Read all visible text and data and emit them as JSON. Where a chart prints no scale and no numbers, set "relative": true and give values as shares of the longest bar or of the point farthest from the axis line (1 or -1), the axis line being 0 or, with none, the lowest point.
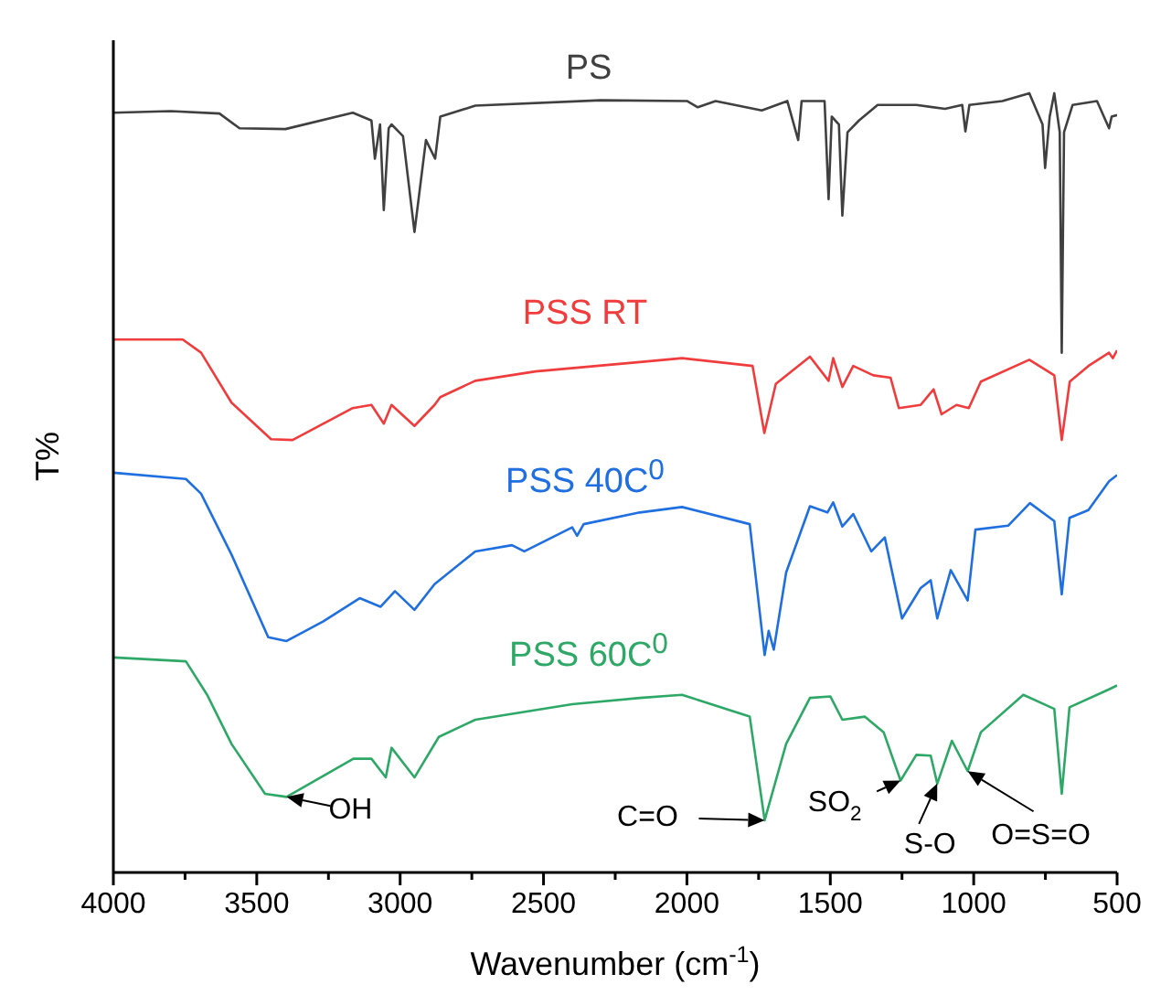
{
  "chart_data": {
    "type": "line",
    "relative": true,
    "xlabel": "Wavenumber (cm$^{-1}$)",
    "ylabel": "T%",
    "xlim": [
      4000,
      500
    ],
    "xticks": [
      4000,
      {
        "value": 3750,
        "label": null
      },
      3500,
      {
        "value": 3250,
        "label": null
      },
      3000,
      {
        "value": 2750,
        "label": null
      },
      2500,
      {
        "value": 2250,
        "label": null
      },
      2000,
      {
        "value": 1750,
        "label": null
      },
      1500,
      {
        "value": 1250,
        "label": null
      },
      1000,
      {
        "value": 750,
        "label": null
      },
      500
    ],
    "series": [
      {
        "name": "PS",
        "color": "#404040",
        "x": [
          4000,
          3800,
          3630,
          3560,
          3400,
          3165,
          3100,
          3088,
          3070,
          3057,
          3040,
          3030,
          2990,
          2950,
          2910,
          2878,
          2860,
          2738,
          2300,
          2000,
          1962,
          1900,
          1739,
          1650,
          1612,
          1600,
          1520,
          1506,
          1495,
          1470,
          1458,
          1440,
          1400,
          1335,
          1200,
          1100,
          1040,
          1029,
          1015,
          900,
          806,
          760,
          751,
          735,
          719,
          700,
          693,
          685,
          655,
          570,
          528,
          519,
          500
        ],
        "values": [
          0.975,
          0.977,
          0.974,
          0.955,
          0.954,
          0.975,
          0.965,
          0.916,
          0.96,
          0.85,
          0.955,
          0.96,
          0.945,
          0.822,
          0.94,
          0.916,
          0.97,
          0.984,
          0.991,
          0.99,
          0.982,
          0.99,
          0.978,
          0.99,
          0.94,
          0.99,
          0.99,
          0.864,
          0.97,
          0.96,
          0.843,
          0.95,
          0.965,
          0.985,
          0.985,
          0.98,
          0.985,
          0.951,
          0.985,
          0.99,
          1,
          0.96,
          0.904,
          0.97,
          1,
          0.95,
          0.667,
          0.95,
          0.985,
          0.99,
          0.955,
          0.97,
          0.972
        ]
      },
      {
        "name": "PSS RT",
        "color": "#f03c3c",
        "x": [
          4000,
          3758,
          3694,
          3588,
          3450,
          3375,
          3165,
          3100,
          3057,
          3030,
          2950,
          2880,
          2860,
          2738,
          2528,
          2164,
          2017,
          1771,
          1730,
          1690,
          1571,
          1506,
          1490,
          1458,
          1420,
          1350,
          1290,
          1261,
          1185,
          1140,
          1112,
          1060,
          1017,
          975,
          806,
          719,
          693,
          665,
          600,
          528,
          515,
          500
        ],
        "values": [
          0.684,
          0.684,
          0.667,
          0.603,
          0.556,
          0.555,
          0.596,
          0.6,
          0.576,
          0.6,
          0.573,
          0.6,
          0.61,
          0.631,
          0.643,
          0.655,
          0.66,
          0.65,
          0.564,
          0.627,
          0.662,
          0.631,
          0.66,
          0.623,
          0.65,
          0.638,
          0.635,
          0.596,
          0.6,
          0.62,
          0.588,
          0.6,
          0.596,
          0.63,
          0.658,
          0.638,
          0.555,
          0.63,
          0.65,
          0.667,
          0.66,
          0.67
        ]
      },
      {
        "name": "PSS 40C$^{0}$",
        "color": "#1f6fe0",
        "x": [
          4000,
          3747,
          3694,
          3588,
          3460,
          3396,
          3269,
          3141,
          3068,
          3018,
          2950,
          2880,
          2738,
          2610,
          2567,
          2400,
          2383,
          2360,
          2164,
          2017,
          1781,
          1729,
          1715,
          1697,
          1654,
          1571,
          1510,
          1490,
          1458,
          1420,
          1357,
          1310,
          1250,
          1185,
          1150,
          1127,
          1080,
          1021,
          994,
          880,
          804,
          719,
          693,
          666,
          600,
          528,
          500
        ],
        "values": [
          0.513,
          0.505,
          0.486,
          0.408,
          0.302,
          0.297,
          0.322,
          0.352,
          0.341,
          0.361,
          0.337,
          0.37,
          0.412,
          0.42,
          0.412,
          0.443,
          0.432,
          0.447,
          0.462,
          0.469,
          0.447,
          0.279,
          0.31,
          0.286,
          0.385,
          0.47,
          0.462,
          0.475,
          0.444,
          0.46,
          0.412,
          0.43,
          0.326,
          0.365,
          0.375,
          0.326,
          0.388,
          0.349,
          0.44,
          0.445,
          0.474,
          0.451,
          0.357,
          0.455,
          0.465,
          0.502,
          0.51
        ]
      },
      {
        "name": "PSS 60C$^{0}$",
        "color": "#2ea866",
        "x": [
          4000,
          3747,
          3673,
          3588,
          3471,
          3396,
          3163,
          3100,
          3050,
          3030,
          2950,
          2865,
          2738,
          2400,
          2164,
          2017,
          1781,
          1729,
          1654,
          1571,
          1500,
          1458,
          1380,
          1314,
          1255,
          1200,
          1150,
          1127,
          1076,
          1021,
          975,
          827,
          719,
          693,
          666,
          528,
          500
        ],
        "values": [
          0.276,
          0.271,
          0.228,
          0.165,
          0.101,
          0.097,
          0.146,
          0.146,
          0.122,
          0.16,
          0.122,
          0.174,
          0.196,
          0.216,
          0.224,
          0.228,
          0.2,
          0.067,
          0.165,
          0.224,
          0.226,
          0.196,
          0.2,
          0.18,
          0.118,
          0.151,
          0.15,
          0.114,
          0.169,
          0.13,
          0.18,
          0.228,
          0.21,
          0.101,
          0.212,
          0.235,
          0.24
        ]
      }
    ],
    "annotations": [
      {
        "text": "OH",
        "x": 3396,
        "y": 0.097
      },
      {
        "text": "C=O",
        "x": 1729,
        "y": 0.067
      },
      {
        "text": "SO$_{2}$",
        "x": 1255,
        "y": 0.118
      },
      {
        "text": "S-O",
        "x": 1127,
        "y": 0.114
      },
      {
        "text": "O=S=O",
        "x": 1021,
        "y": 0.13
      }
    ]
  }
}
